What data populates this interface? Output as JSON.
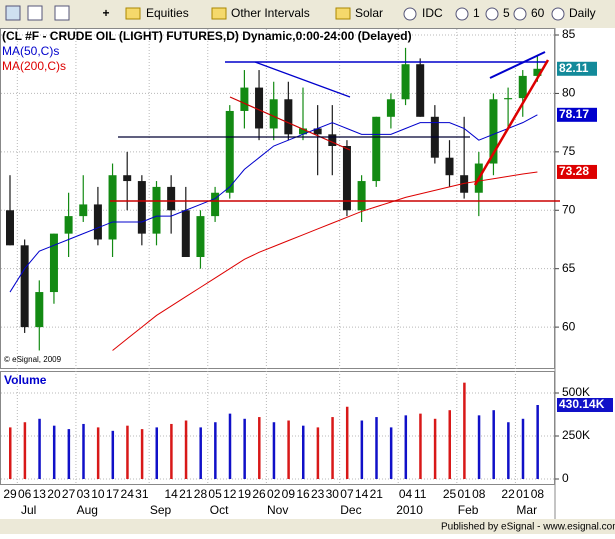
{
  "toolbar": {
    "items": [
      "Equities",
      "Other Intervals",
      "Solar",
      "IDC",
      "1",
      "5",
      "60",
      "Daily"
    ]
  },
  "footer": "Published by eSignal - www.esignal.com",
  "chart_data": [
    {
      "type": "candlestick",
      "title": "(CL #F - CRUDE OIL (LIGHT) FUTURES,D) Dynamic,0:00-24:00 (Delayed)",
      "copyright": "© eSignal, 2009",
      "categories": [
        "29",
        "06",
        "13",
        "20",
        "27",
        "03",
        "10",
        "17",
        "24",
        "31",
        null,
        "14",
        "21",
        "28",
        "05",
        "12",
        "19",
        "26",
        "02",
        "09",
        "16",
        "23",
        "30",
        "07",
        "14",
        "21",
        null,
        "04",
        "11",
        null,
        "25",
        "01",
        "08",
        null,
        "22",
        "01",
        "08"
      ],
      "month_categories": [
        null,
        "Jul",
        null,
        null,
        null,
        "Aug",
        null,
        null,
        null,
        null,
        "Sep",
        null,
        null,
        null,
        "Oct",
        null,
        null,
        null,
        "Nov",
        null,
        null,
        null,
        null,
        "Dec",
        null,
        null,
        null,
        "2010",
        null,
        null,
        null,
        "Feb",
        null,
        null,
        null,
        "Mar",
        null
      ],
      "open": [
        70,
        67,
        60,
        63,
        68,
        69.5,
        70.5,
        67.5,
        73,
        72.5,
        68,
        72,
        70,
        66,
        69.5,
        71.5,
        78.5,
        80.5,
        77,
        79.5,
        76.5,
        77,
        76.5,
        75.5,
        70,
        72.5,
        78,
        79.5,
        82.5,
        78,
        74.5,
        73,
        71.5,
        74,
        79.5,
        79.6,
        81.5
      ],
      "high": [
        73,
        67.5,
        64,
        68,
        71.5,
        73,
        72,
        74,
        75,
        73,
        72.5,
        73,
        72,
        70,
        72,
        79,
        82,
        82,
        81,
        81,
        80.5,
        79,
        79,
        76,
        73,
        78,
        80,
        83.9,
        83,
        79,
        76,
        78,
        75,
        80,
        80.5,
        82,
        83.2
      ],
      "low": [
        67,
        59.5,
        58,
        62,
        66,
        69,
        67,
        66,
        70,
        67,
        67,
        68,
        66,
        65,
        69,
        71,
        77,
        76,
        76,
        76,
        76,
        73,
        73,
        69.5,
        69,
        72,
        77,
        79,
        78,
        74,
        72,
        71,
        69.5,
        73,
        77,
        78,
        81
      ],
      "close": [
        67,
        60,
        63,
        68,
        69.5,
        70.5,
        67.5,
        73,
        72.5,
        68,
        72,
        70,
        66,
        69.5,
        71.5,
        78.5,
        80.5,
        77,
        79.5,
        76.5,
        77,
        76.5,
        75.5,
        70,
        72.5,
        78,
        79.5,
        82.5,
        78,
        74.5,
        73,
        71.5,
        74,
        79.5,
        79.6,
        81.5,
        82.11
      ],
      "up_color": "#138a13",
      "down_color": "#1a1a1a",
      "series": [
        {
          "name": "MA(50,C)s",
          "color": "#0000cc",
          "values": [
            63,
            65,
            66.5,
            67,
            67.5,
            68,
            68.5,
            69,
            69,
            69,
            69.5,
            69.5,
            70,
            70.5,
            71,
            72,
            73.5,
            74.5,
            75.5,
            76,
            76.5,
            77,
            77.5,
            77,
            76.5,
            76.5,
            76.5,
            77,
            77.5,
            77.5,
            77.5,
            77,
            76,
            76.5,
            77,
            77.5,
            78.17
          ]
        },
        {
          "name": "MA(200,C)s",
          "color": "#dd0000",
          "values": [
            null,
            null,
            null,
            null,
            null,
            null,
            null,
            58,
            59,
            60,
            61,
            61.8,
            62.6,
            63.4,
            64.2,
            65,
            65.8,
            66.4,
            66.9,
            67.4,
            67.9,
            68.4,
            68.9,
            69.4,
            69.9,
            70.3,
            70.7,
            71.1,
            71.4,
            71.7,
            72,
            72.3,
            72.5,
            72.7,
            72.9,
            73.1,
            73.28
          ]
        }
      ],
      "ylim": [
        56.5,
        85.6
      ],
      "yticks": [
        60,
        65,
        70,
        75,
        80,
        85
      ],
      "grid": true
    },
    {
      "type": "bar",
      "title": "Volume",
      "values": [
        300000,
        330000,
        350000,
        310000,
        290000,
        320000,
        300000,
        280000,
        310000,
        290000,
        300000,
        320000,
        340000,
        300000,
        330000,
        380000,
        350000,
        360000,
        330000,
        340000,
        310000,
        300000,
        360000,
        420000,
        340000,
        360000,
        300000,
        370000,
        380000,
        350000,
        400000,
        560000,
        370000,
        400000,
        330000,
        350000,
        430140
      ],
      "value_labels": [
        null,
        null,
        null,
        null,
        null,
        null,
        null,
        null,
        null,
        null,
        null,
        null,
        null,
        null,
        null,
        null,
        null,
        null,
        null,
        null,
        null,
        null,
        null,
        null,
        null,
        null,
        null,
        null,
        null,
        null,
        null,
        null,
        null,
        null,
        null,
        null,
        "430.14K"
      ],
      "up_color": "#1010c8",
      "down_color": "#d81818",
      "ylim": [
        0,
        622000
      ],
      "yticks": [
        {
          "value": 0,
          "label": "0"
        },
        {
          "value": 250000,
          "label": "250K"
        },
        {
          "value": 500000,
          "label": "500K"
        }
      ],
      "grid": true
    }
  ]
}
